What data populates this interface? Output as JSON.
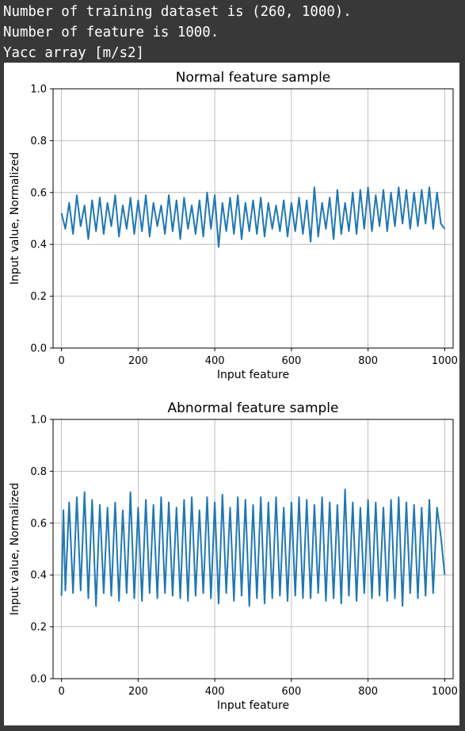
{
  "console": {
    "lines": [
      "Number of training dataset is (260, 1000).",
      "Number of feature is 1000.",
      "Yacc array [m/s2]"
    ]
  },
  "colors": {
    "line": "#1f77b4",
    "grid": "#b0b0b0",
    "background": "#383838"
  },
  "chart_data": [
    {
      "type": "line",
      "title": "Normal feature sample",
      "xlabel": "Input feature",
      "ylabel": "Input value, Normalized",
      "xlim": [
        -22,
        1022
      ],
      "ylim": [
        0.0,
        1.0
      ],
      "xticks": [
        0,
        200,
        400,
        600,
        800,
        1000
      ],
      "yticks": [
        0.0,
        0.2,
        0.4,
        0.6,
        0.8,
        1.0
      ],
      "xtick_labels": [
        "0",
        "200",
        "400",
        "600",
        "800",
        "1000"
      ],
      "ytick_labels": [
        "0.0",
        "0.2",
        "0.4",
        "0.6",
        "0.8",
        "1.0"
      ],
      "grid": true,
      "x": [
        0,
        10,
        20,
        30,
        40,
        50,
        60,
        70,
        80,
        90,
        100,
        110,
        120,
        130,
        140,
        150,
        160,
        170,
        180,
        190,
        200,
        210,
        220,
        230,
        240,
        250,
        260,
        270,
        280,
        290,
        300,
        310,
        320,
        330,
        340,
        350,
        360,
        370,
        380,
        390,
        400,
        410,
        420,
        430,
        440,
        450,
        460,
        470,
        480,
        490,
        500,
        510,
        520,
        530,
        540,
        550,
        560,
        570,
        580,
        590,
        600,
        610,
        620,
        630,
        640,
        650,
        660,
        670,
        680,
        690,
        700,
        710,
        720,
        730,
        740,
        750,
        760,
        770,
        780,
        790,
        800,
        810,
        820,
        830,
        840,
        850,
        860,
        870,
        880,
        890,
        900,
        910,
        920,
        930,
        940,
        950,
        960,
        970,
        980,
        990,
        1000
      ],
      "series": [
        {
          "values": [
            0.52,
            0.46,
            0.56,
            0.44,
            0.59,
            0.47,
            0.55,
            0.42,
            0.57,
            0.45,
            0.58,
            0.44,
            0.56,
            0.47,
            0.59,
            0.43,
            0.55,
            0.46,
            0.58,
            0.44,
            0.57,
            0.45,
            0.59,
            0.43,
            0.56,
            0.47,
            0.55,
            0.44,
            0.59,
            0.45,
            0.57,
            0.42,
            0.58,
            0.46,
            0.55,
            0.44,
            0.57,
            0.43,
            0.6,
            0.46,
            0.59,
            0.39,
            0.56,
            0.45,
            0.58,
            0.44,
            0.59,
            0.42,
            0.56,
            0.45,
            0.57,
            0.44,
            0.58,
            0.43,
            0.56,
            0.46,
            0.55,
            0.45,
            0.57,
            0.43,
            0.56,
            0.45,
            0.58,
            0.44,
            0.57,
            0.41,
            0.62,
            0.43,
            0.56,
            0.46,
            0.58,
            0.42,
            0.61,
            0.44,
            0.56,
            0.45,
            0.6,
            0.44,
            0.61,
            0.46,
            0.62,
            0.45,
            0.59,
            0.47,
            0.61,
            0.45,
            0.6,
            0.47,
            0.62,
            0.48,
            0.61,
            0.46,
            0.6,
            0.47,
            0.61,
            0.48,
            0.62,
            0.46,
            0.6,
            0.48,
            0.46
          ]
        }
      ]
    },
    {
      "type": "line",
      "title": "Abnormal feature sample",
      "xlabel": "Input feature",
      "ylabel": "Input value, Normalized",
      "xlim": [
        -22,
        1022
      ],
      "ylim": [
        0.0,
        1.0
      ],
      "xticks": [
        0,
        200,
        400,
        600,
        800,
        1000
      ],
      "yticks": [
        0.0,
        0.2,
        0.4,
        0.6,
        0.8,
        1.0
      ],
      "xtick_labels": [
        "0",
        "200",
        "400",
        "600",
        "800",
        "1000"
      ],
      "ytick_labels": [
        "0.0",
        "0.2",
        "0.4",
        "0.6",
        "0.8",
        "1.0"
      ],
      "grid": true,
      "x": [
        0,
        5,
        10,
        20,
        30,
        40,
        50,
        60,
        70,
        80,
        90,
        100,
        110,
        120,
        130,
        140,
        150,
        160,
        170,
        180,
        190,
        200,
        210,
        220,
        230,
        240,
        250,
        260,
        270,
        280,
        290,
        300,
        310,
        320,
        330,
        340,
        350,
        360,
        370,
        380,
        390,
        400,
        410,
        420,
        430,
        440,
        450,
        460,
        470,
        480,
        490,
        500,
        510,
        520,
        530,
        540,
        550,
        560,
        570,
        580,
        590,
        600,
        610,
        620,
        630,
        640,
        650,
        660,
        670,
        680,
        690,
        700,
        710,
        720,
        730,
        740,
        750,
        760,
        770,
        780,
        790,
        800,
        810,
        820,
        830,
        840,
        850,
        860,
        870,
        880,
        890,
        900,
        910,
        920,
        930,
        940,
        950,
        960,
        970,
        980,
        990,
        1000
      ],
      "series": [
        {
          "values": [
            0.32,
            0.65,
            0.34,
            0.68,
            0.33,
            0.7,
            0.34,
            0.72,
            0.31,
            0.69,
            0.28,
            0.67,
            0.33,
            0.66,
            0.32,
            0.68,
            0.3,
            0.65,
            0.33,
            0.72,
            0.31,
            0.66,
            0.3,
            0.69,
            0.33,
            0.67,
            0.31,
            0.7,
            0.33,
            0.68,
            0.32,
            0.66,
            0.31,
            0.69,
            0.3,
            0.7,
            0.32,
            0.65,
            0.33,
            0.7,
            0.31,
            0.68,
            0.29,
            0.71,
            0.33,
            0.66,
            0.3,
            0.7,
            0.32,
            0.69,
            0.28,
            0.67,
            0.31,
            0.7,
            0.29,
            0.68,
            0.31,
            0.7,
            0.32,
            0.66,
            0.3,
            0.68,
            0.32,
            0.7,
            0.31,
            0.69,
            0.31,
            0.67,
            0.33,
            0.7,
            0.3,
            0.68,
            0.31,
            0.67,
            0.29,
            0.73,
            0.32,
            0.68,
            0.3,
            0.66,
            0.33,
            0.69,
            0.31,
            0.68,
            0.32,
            0.66,
            0.3,
            0.69,
            0.31,
            0.7,
            0.28,
            0.68,
            0.33,
            0.67,
            0.31,
            0.66,
            0.32,
            0.69,
            0.33,
            0.66,
            0.55,
            0.4
          ]
        }
      ]
    }
  ]
}
